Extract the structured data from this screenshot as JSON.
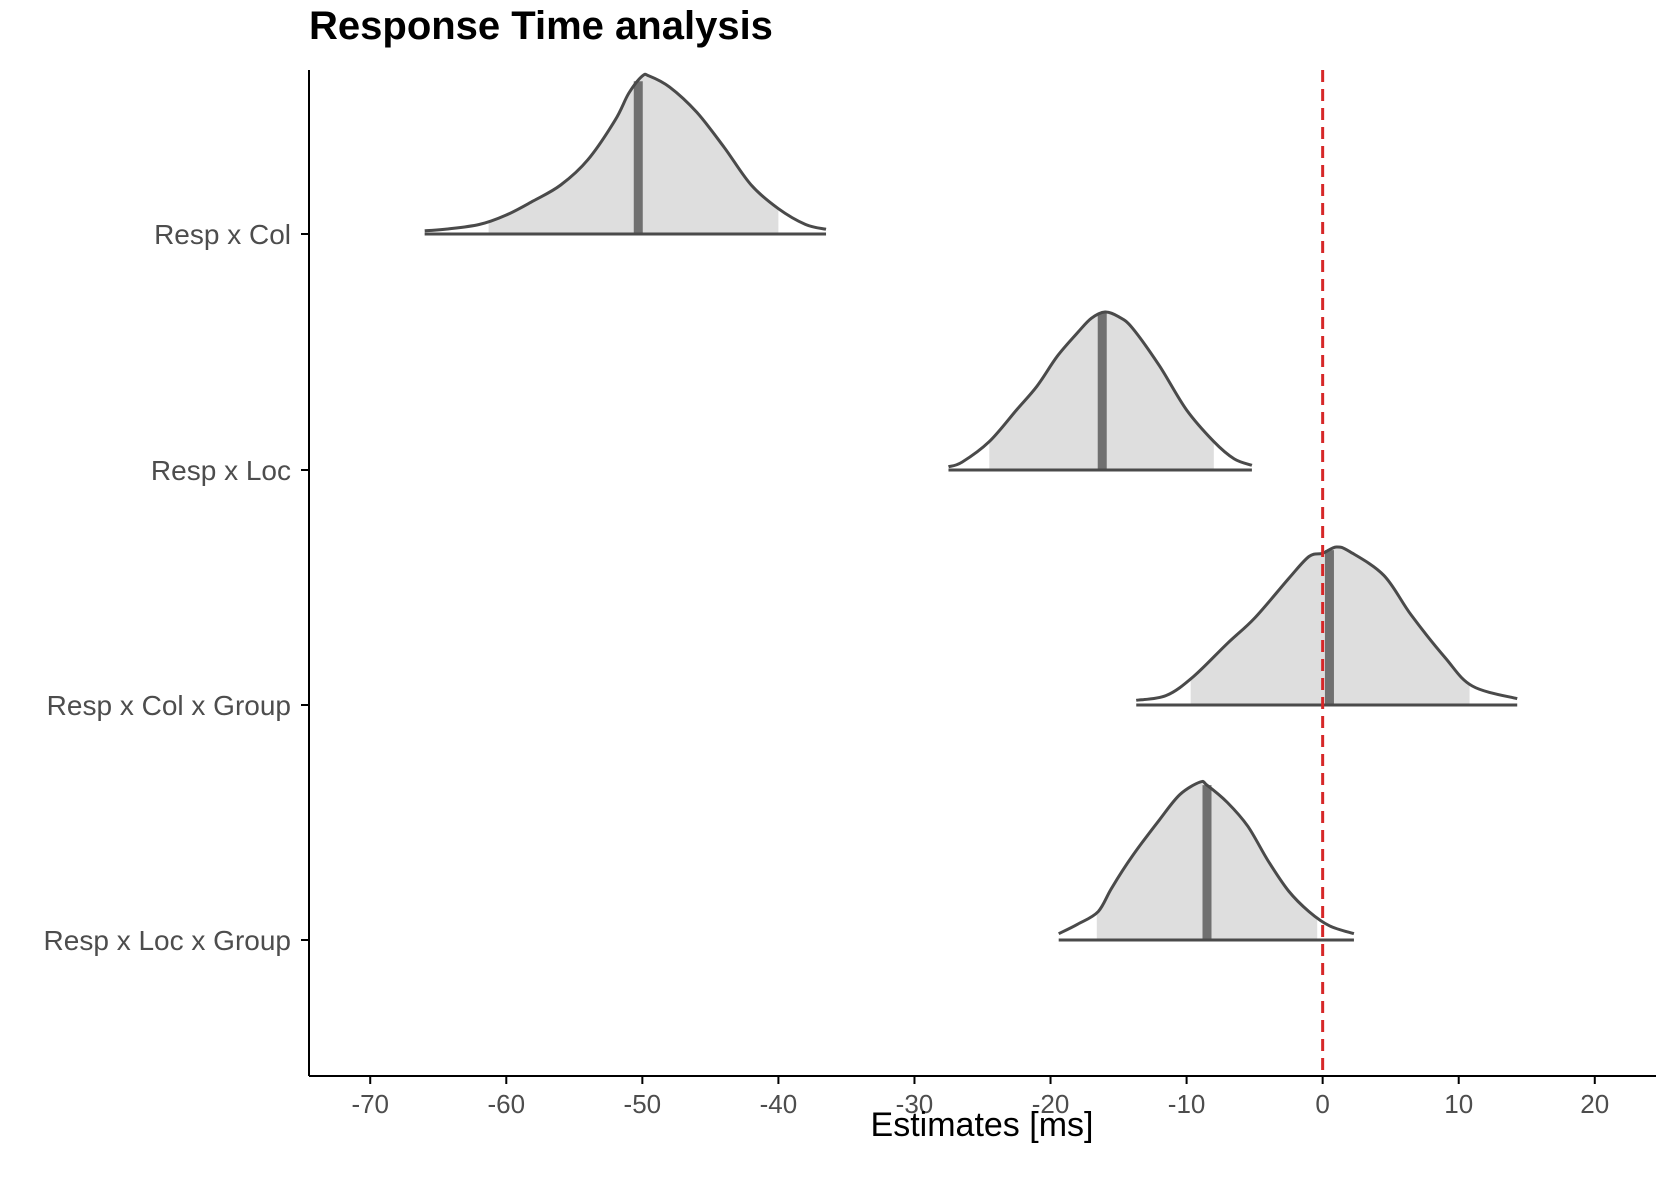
{
  "chart_data": {
    "type": "area",
    "title": "Response Time analysis",
    "xlabel": "Estimates [ms]",
    "ylabel": "",
    "xlim": [
      -74.5,
      24.5
    ],
    "xticks": [
      -70,
      -60,
      -50,
      -40,
      -30,
      -20,
      -10,
      0,
      10,
      20
    ],
    "xtick_labels": [
      "-70",
      "-60",
      "-50",
      "-40",
      "-30",
      "-20",
      "-10",
      "0",
      "10",
      "20"
    ],
    "grid": false,
    "reference_line": {
      "x": 0,
      "style": "dashed",
      "color": "#d62728"
    },
    "colors": {
      "fill": "#dedede",
      "outline": "#4a4a4a",
      "median": "#707070",
      "axis": "#000000",
      "tick_text": "#4d4d4d"
    },
    "series": [
      {
        "name": "Resp x Col",
        "median": -50.3,
        "ci": [
          -61.3,
          -40.0
        ],
        "min": -66.0,
        "max": -36.5,
        "density": [
          [
            -66.0,
            0.02
          ],
          [
            -64.5,
            0.03
          ],
          [
            -62.0,
            0.06
          ],
          [
            -60.0,
            0.12
          ],
          [
            -58.0,
            0.21
          ],
          [
            -56.0,
            0.31
          ],
          [
            -54.0,
            0.47
          ],
          [
            -52.0,
            0.72
          ],
          [
            -51.0,
            0.89
          ],
          [
            -50.0,
            1.0
          ],
          [
            -49.5,
            1.0
          ],
          [
            -48.0,
            0.93
          ],
          [
            -46.0,
            0.77
          ],
          [
            -44.0,
            0.55
          ],
          [
            -42.0,
            0.31
          ],
          [
            -40.0,
            0.16
          ],
          [
            -38.0,
            0.06
          ],
          [
            -36.5,
            0.03
          ]
        ]
      },
      {
        "name": "Resp x Loc",
        "median": -16.2,
        "ci": [
          -24.5,
          -8.0
        ],
        "min": -27.5,
        "max": -5.2,
        "density": [
          [
            -27.5,
            0.02
          ],
          [
            -26.5,
            0.05
          ],
          [
            -24.5,
            0.18
          ],
          [
            -22.5,
            0.38
          ],
          [
            -21.0,
            0.53
          ],
          [
            -19.5,
            0.72
          ],
          [
            -18.0,
            0.87
          ],
          [
            -17.0,
            0.96
          ],
          [
            -16.0,
            1.0
          ],
          [
            -15.0,
            0.97
          ],
          [
            -14.0,
            0.9
          ],
          [
            -12.0,
            0.66
          ],
          [
            -10.0,
            0.38
          ],
          [
            -8.0,
            0.18
          ],
          [
            -6.5,
            0.07
          ],
          [
            -5.2,
            0.03
          ]
        ]
      },
      {
        "name": "Resp x Col x Group",
        "median": 0.5,
        "ci": [
          -9.7,
          10.8
        ],
        "min": -13.7,
        "max": 14.3,
        "density": [
          [
            -13.7,
            0.03
          ],
          [
            -11.5,
            0.06
          ],
          [
            -9.5,
            0.18
          ],
          [
            -7.0,
            0.39
          ],
          [
            -5.0,
            0.55
          ],
          [
            -2.5,
            0.8
          ],
          [
            -1.0,
            0.94
          ],
          [
            0.0,
            0.96
          ],
          [
            1.0,
            1.0
          ],
          [
            2.0,
            0.97
          ],
          [
            4.5,
            0.82
          ],
          [
            6.5,
            0.57
          ],
          [
            9.0,
            0.3
          ],
          [
            11.0,
            0.12
          ],
          [
            14.3,
            0.04
          ]
        ]
      },
      {
        "name": "Resp x Loc x Group",
        "median": -8.5,
        "ci": [
          -16.6,
          -0.4
        ],
        "min": -19.4,
        "max": 2.3,
        "density": [
          [
            -19.4,
            0.04
          ],
          [
            -18.0,
            0.1
          ],
          [
            -16.5,
            0.18
          ],
          [
            -15.5,
            0.33
          ],
          [
            -14.0,
            0.53
          ],
          [
            -12.0,
            0.76
          ],
          [
            -10.5,
            0.92
          ],
          [
            -9.0,
            1.0
          ],
          [
            -8.5,
            0.98
          ],
          [
            -7.0,
            0.87
          ],
          [
            -5.5,
            0.72
          ],
          [
            -4.0,
            0.5
          ],
          [
            -2.5,
            0.31
          ],
          [
            -1.0,
            0.18
          ],
          [
            0.5,
            0.09
          ],
          [
            2.3,
            0.04
          ]
        ]
      }
    ]
  }
}
